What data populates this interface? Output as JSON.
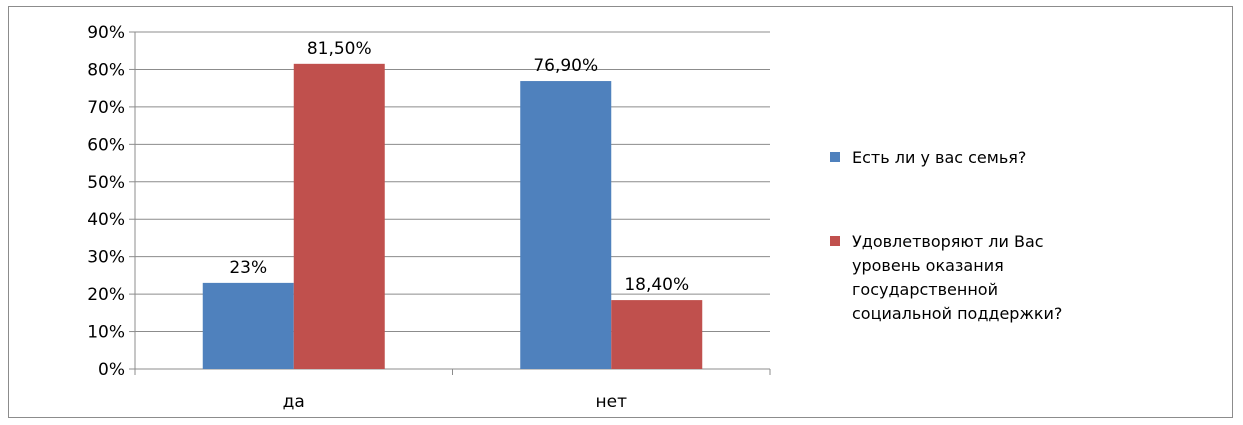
{
  "chart_data": {
    "type": "bar",
    "categories": [
      "да",
      "нет"
    ],
    "series": [
      {
        "name": "Есть ли у вас семья?",
        "values": [
          23.0,
          76.9
        ],
        "labels": [
          "23%",
          "76,90%"
        ],
        "color": "#4f81bd"
      },
      {
        "name": "Удовлетворяют ли Вас уровень оказания государственной социальной поддержки?",
        "legend_lines": [
          "Удовлетворяют ли Вас",
          "уровень оказания",
          "государственной",
          "социальной поддержки?"
        ],
        "values": [
          81.5,
          18.4
        ],
        "labels": [
          "81,50%",
          "18,40%"
        ],
        "color": "#c0504d"
      }
    ],
    "y_ticks": [
      "0%",
      "10%",
      "20%",
      "30%",
      "40%",
      "50%",
      "60%",
      "70%",
      "80%",
      "90%"
    ],
    "ylim": [
      0,
      90
    ],
    "grid": true,
    "legend_position": "right",
    "title": "",
    "xlabel": "",
    "ylabel": ""
  }
}
